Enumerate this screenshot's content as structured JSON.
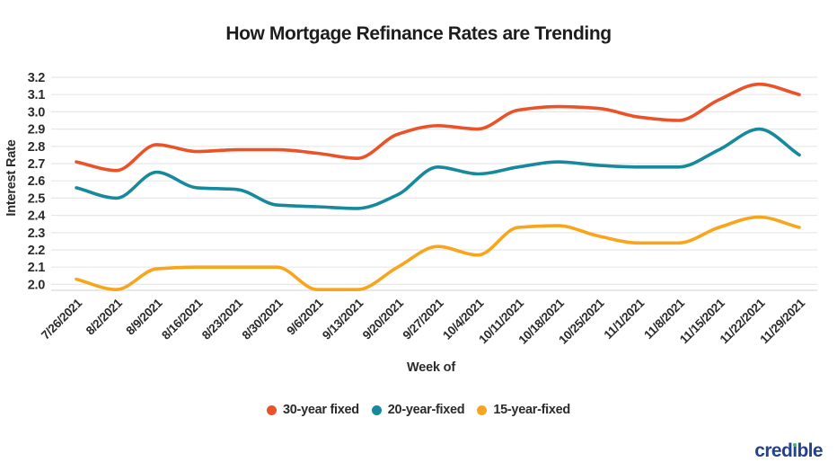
{
  "title": "How Mortgage Refinance Rates are Trending",
  "footer": {
    "logo": "credible"
  },
  "colors": {
    "background": "#FFFFFF",
    "grid": "#E7E7E7",
    "axis_border": "#DBDBDB",
    "tick_text": "#2B2B2B",
    "title_text": "#1D1D1D",
    "logo_blue": "#24418E",
    "logo_green": "#2FBE7E"
  },
  "chart_data": {
    "type": "line",
    "title": "How Mortgage Refinance Rates are Trending",
    "xlabel": "Week of",
    "ylabel": "Interest Rate",
    "ylim": [
      1.95,
      3.2
    ],
    "y_ticks": [
      "3.2",
      "3.1",
      "3.0",
      "2.9",
      "2.8",
      "2.7",
      "2.6",
      "2.5",
      "2.4",
      "2.3",
      "2.2",
      "2.1",
      "2.0"
    ],
    "grid": true,
    "legend_position": "bottom",
    "categories": [
      "7/26/2021",
      "8/2/2021",
      "8/9/2021",
      "8/16/2021",
      "8/23/2021",
      "8/30/2021",
      "9/6/2021",
      "9/13/2021",
      "9/20/2021",
      "9/27/2021",
      "10/4/2021",
      "10/11/2021",
      "10/18/2021",
      "10/25/2021",
      "11/1/2021",
      "11/8/2021",
      "11/15/2021",
      "11/22/2021",
      "11/29/2021"
    ],
    "series": [
      {
        "name": "30-year fixed",
        "color": "#EA5328",
        "values": [
          2.71,
          2.66,
          2.81,
          2.77,
          2.78,
          2.78,
          2.76,
          2.73,
          2.87,
          2.92,
          2.9,
          3.01,
          3.03,
          3.02,
          2.97,
          2.95,
          3.07,
          3.16,
          3.1
        ]
      },
      {
        "name": "20-year-fixed",
        "color": "#17899D",
        "values": [
          2.56,
          2.5,
          2.65,
          2.56,
          2.55,
          2.46,
          2.45,
          2.44,
          2.52,
          2.68,
          2.64,
          2.68,
          2.71,
          2.69,
          2.68,
          2.68,
          2.78,
          2.9,
          2.75
        ]
      },
      {
        "name": "15-year-fixed",
        "color": "#F9A51B",
        "values": [
          2.03,
          1.97,
          2.09,
          2.1,
          2.1,
          2.1,
          1.97,
          1.97,
          2.1,
          2.22,
          2.17,
          2.33,
          2.34,
          2.28,
          2.24,
          2.24,
          2.33,
          2.39,
          2.33
        ]
      }
    ]
  }
}
